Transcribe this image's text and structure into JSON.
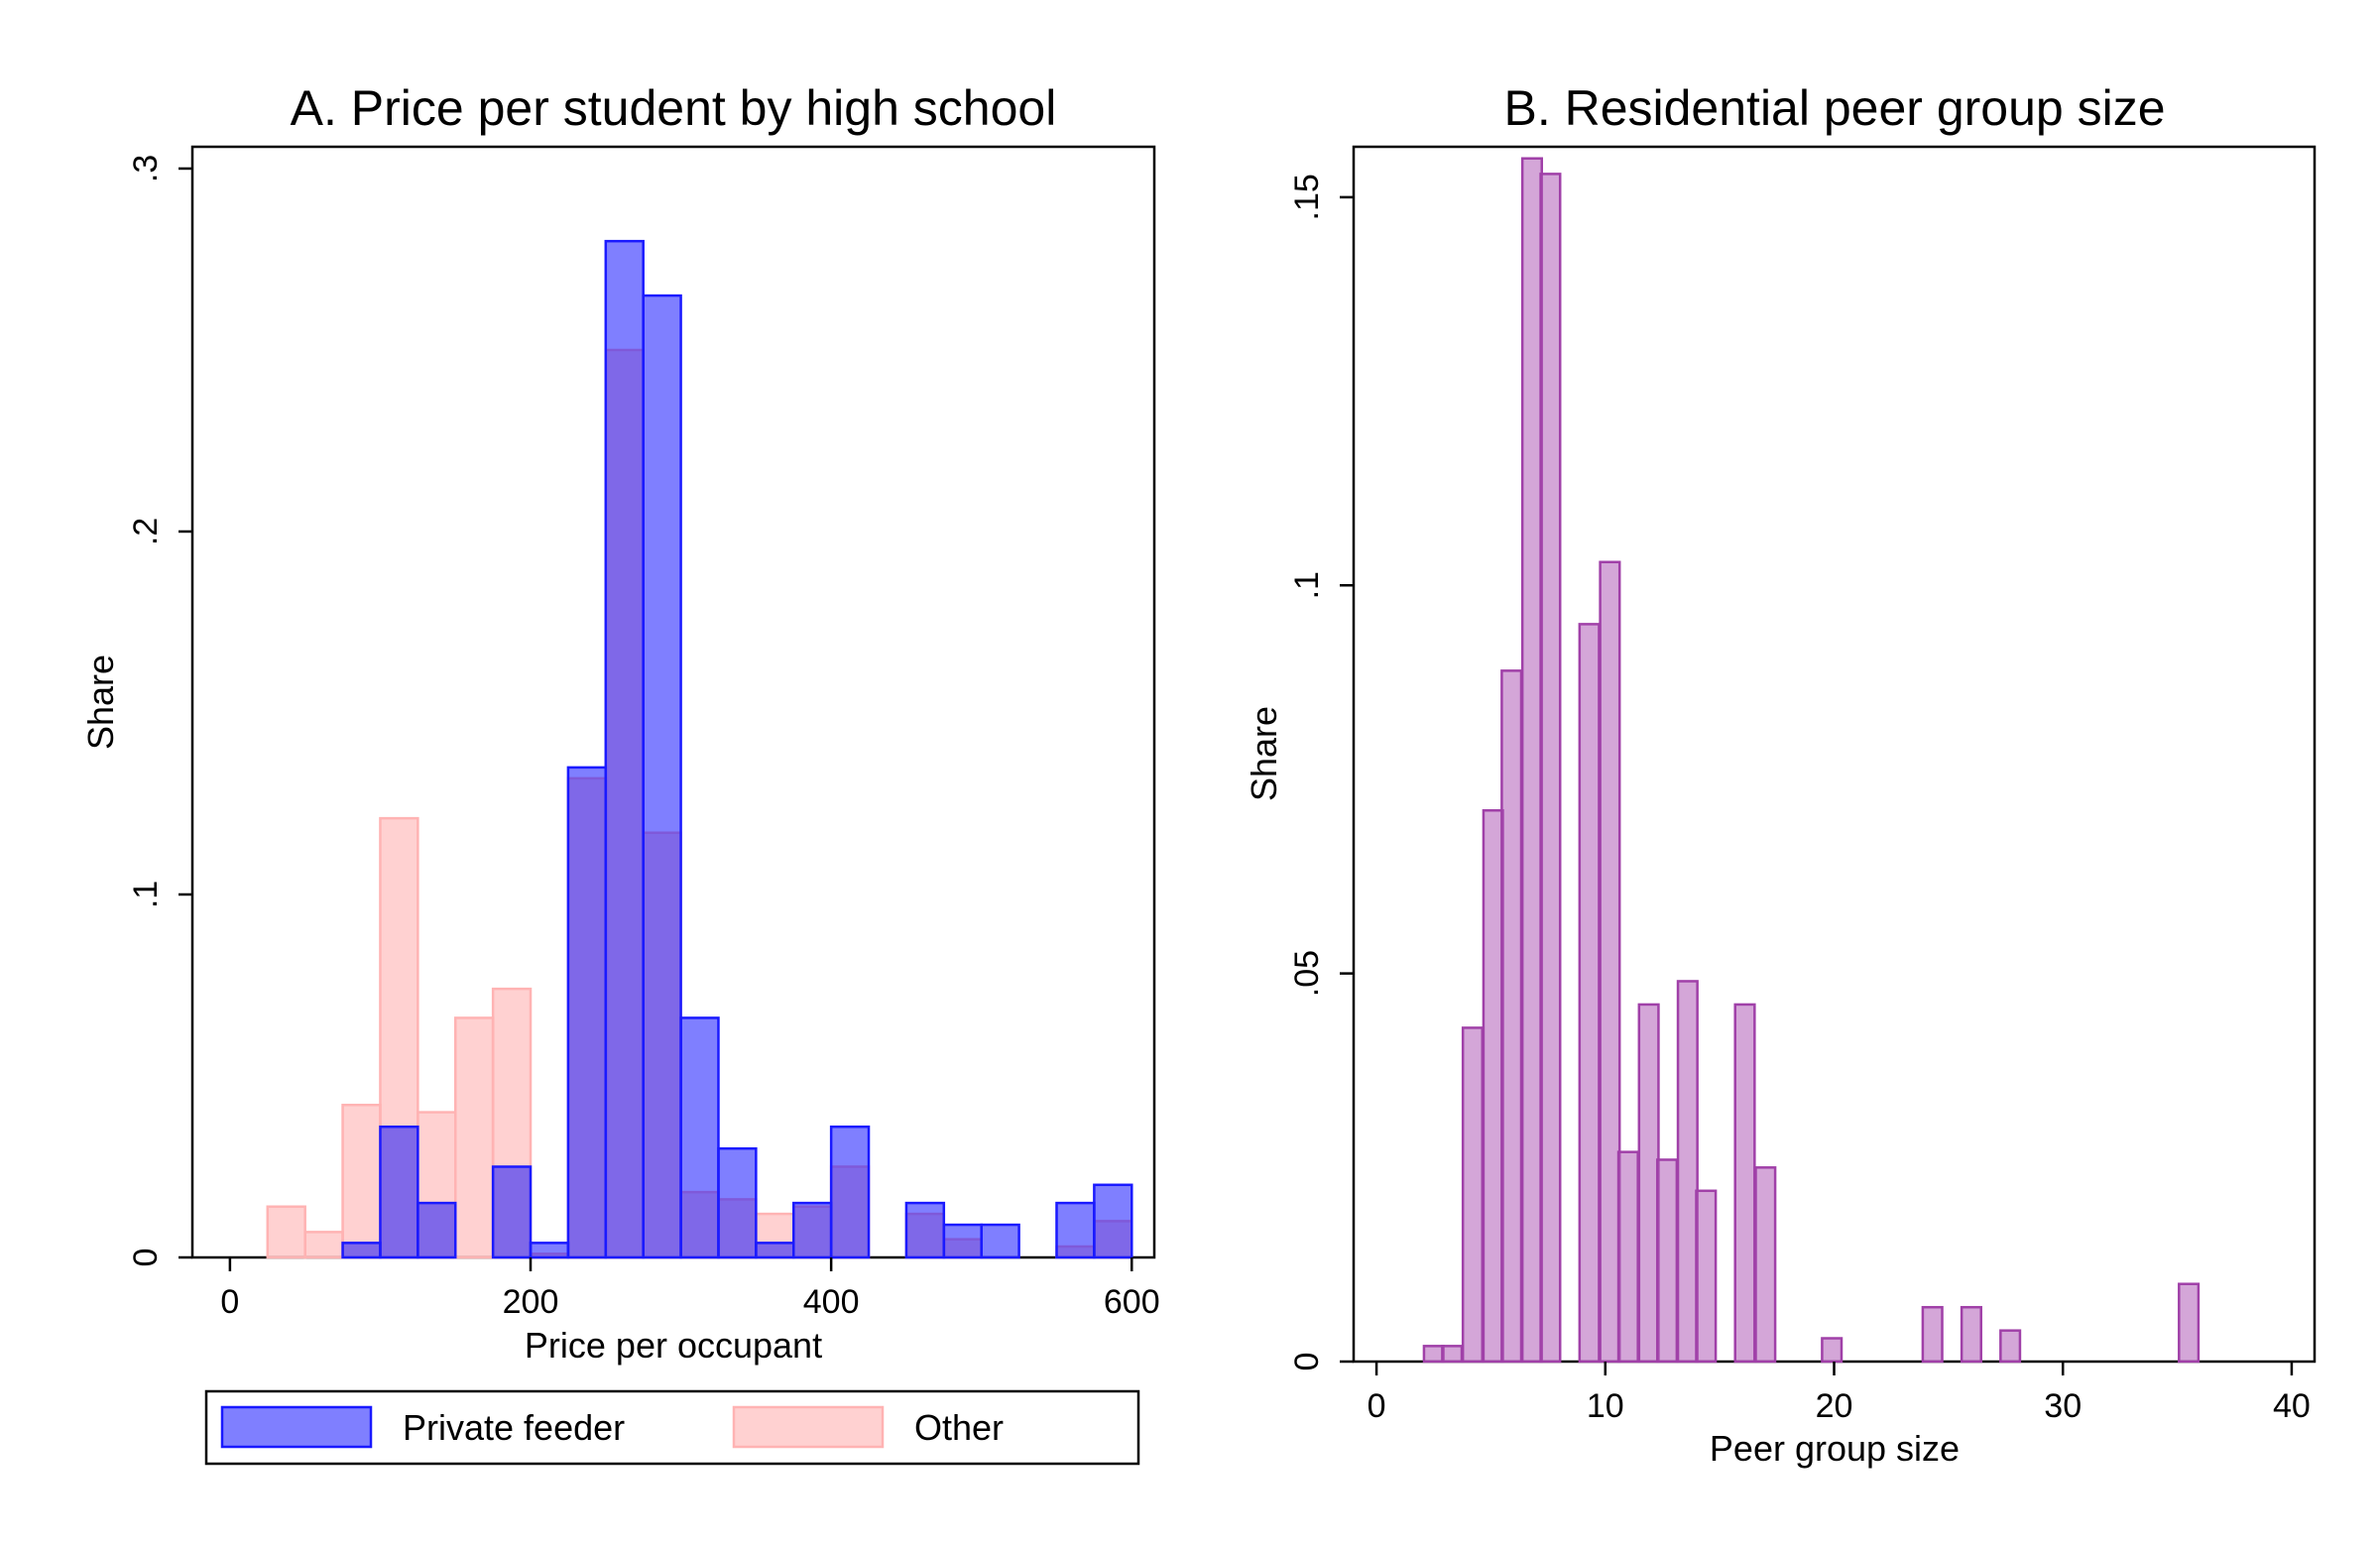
{
  "chart_data": [
    {
      "type": "bar",
      "title": "A. Price per student by high school",
      "xlabel": "Price per occupant",
      "ylabel": "Share",
      "xlim": [
        -25,
        615
      ],
      "ylim": [
        0,
        0.306
      ],
      "xticks": [
        0,
        200,
        400,
        600
      ],
      "xtick_labels": [
        "0",
        "200",
        "400",
        "600"
      ],
      "yticks": [
        0,
        0.1,
        0.2,
        0.3
      ],
      "ytick_labels": [
        "0",
        ".1",
        ".2",
        ".3"
      ],
      "bin_width": 25,
      "grid": false,
      "legend_position": "bottom",
      "series": [
        {
          "name": "Private feeder",
          "color": "#0000ff",
          "fill_opacity": 0.5,
          "x": [
            87.5,
            112.5,
            137.5,
            187.5,
            212.5,
            237.5,
            262.5,
            287.5,
            312.5,
            337.5,
            362.5,
            387.5,
            412.5,
            462.5,
            487.5,
            512.5,
            562.5,
            587.5
          ],
          "values": [
            0.004,
            0.036,
            0.015,
            0.025,
            0.004,
            0.135,
            0.28,
            0.265,
            0.066,
            0.03,
            0.004,
            0.015,
            0.036,
            0.015,
            0.009,
            0.009,
            0.015,
            0.02
          ]
        },
        {
          "name": "Other",
          "color": "#ff9999",
          "fill_opacity": 0.45,
          "x": [
            37.5,
            62.5,
            87.5,
            112.5,
            137.5,
            162.5,
            187.5,
            212.5,
            237.5,
            262.5,
            287.5,
            312.5,
            337.5,
            362.5,
            387.5,
            412.5,
            462.5,
            487.5,
            562.5,
            587.5
          ],
          "values": [
            0.014,
            0.007,
            0.042,
            0.121,
            0.04,
            0.066,
            0.074,
            0.001,
            0.132,
            0.25,
            0.117,
            0.018,
            0.016,
            0.012,
            0.014,
            0.025,
            0.012,
            0.005,
            0.003,
            0.01
          ]
        }
      ]
    },
    {
      "type": "bar",
      "title": "B. Residential peer group size",
      "xlabel": "Peer group size",
      "ylabel": "Share",
      "xlim": [
        -1,
        41
      ],
      "ylim": [
        0,
        0.1565
      ],
      "xticks": [
        0,
        10,
        20,
        30,
        40
      ],
      "xtick_labels": [
        "0",
        "10",
        "20",
        "30",
        "40"
      ],
      "yticks": [
        0,
        0.05,
        0.1,
        0.15
      ],
      "ytick_labels": [
        "0",
        ".05",
        ".1",
        ".15"
      ],
      "bin_width": 0.85,
      "grid": false,
      "series": [
        {
          "color": "#b05cb8",
          "fill_opacity": 0.55,
          "x": [
            2.5,
            3.3,
            4.2,
            5.1,
            5.9,
            6.8,
            7.6,
            9.3,
            10.2,
            11.0,
            11.9,
            12.7,
            13.6,
            14.4,
            16.1,
            17.0,
            19.9,
            24.3,
            26.0,
            27.7,
            35.5
          ],
          "values": [
            0.002,
            0.002,
            0.043,
            0.071,
            0.089,
            0.155,
            0.153,
            0.095,
            0.103,
            0.027,
            0.046,
            0.026,
            0.049,
            0.022,
            0.046,
            0.025,
            0.003,
            0.007,
            0.007,
            0.004,
            0.01
          ]
        }
      ]
    }
  ],
  "legend": {
    "items": [
      {
        "label": "Private feeder",
        "color": "#0000ff"
      },
      {
        "label": "Other",
        "color": "#ff9999"
      }
    ]
  }
}
